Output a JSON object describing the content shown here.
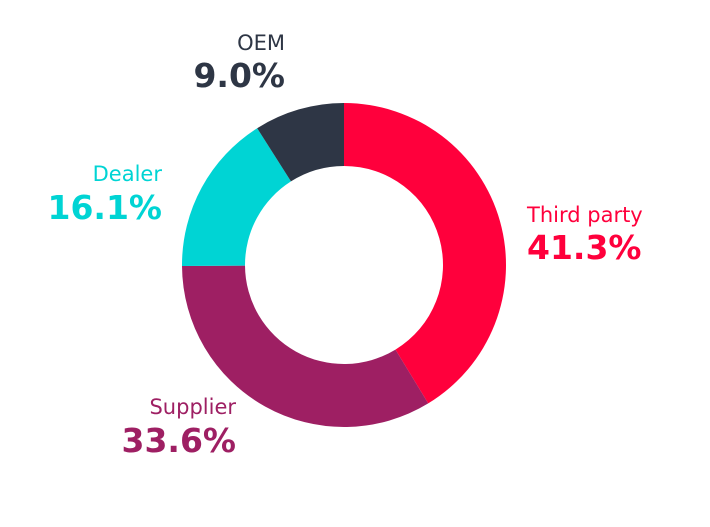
{
  "chart_data": {
    "type": "pie",
    "variant": "donut",
    "title": "",
    "legend": "none",
    "slices": [
      {
        "label": "Third party",
        "value": 41.3,
        "display": "41.3%",
        "color": "#ff003c"
      },
      {
        "label": "Supplier",
        "value": 33.6,
        "display": "33.6%",
        "color": "#9e1f63"
      },
      {
        "label": "Dealer",
        "value": 16.1,
        "display": "16.1%",
        "color": "#00d4d4"
      },
      {
        "label": "OEM",
        "value": 9.0,
        "display": "9.0%",
        "color": "#2e3645"
      }
    ]
  }
}
